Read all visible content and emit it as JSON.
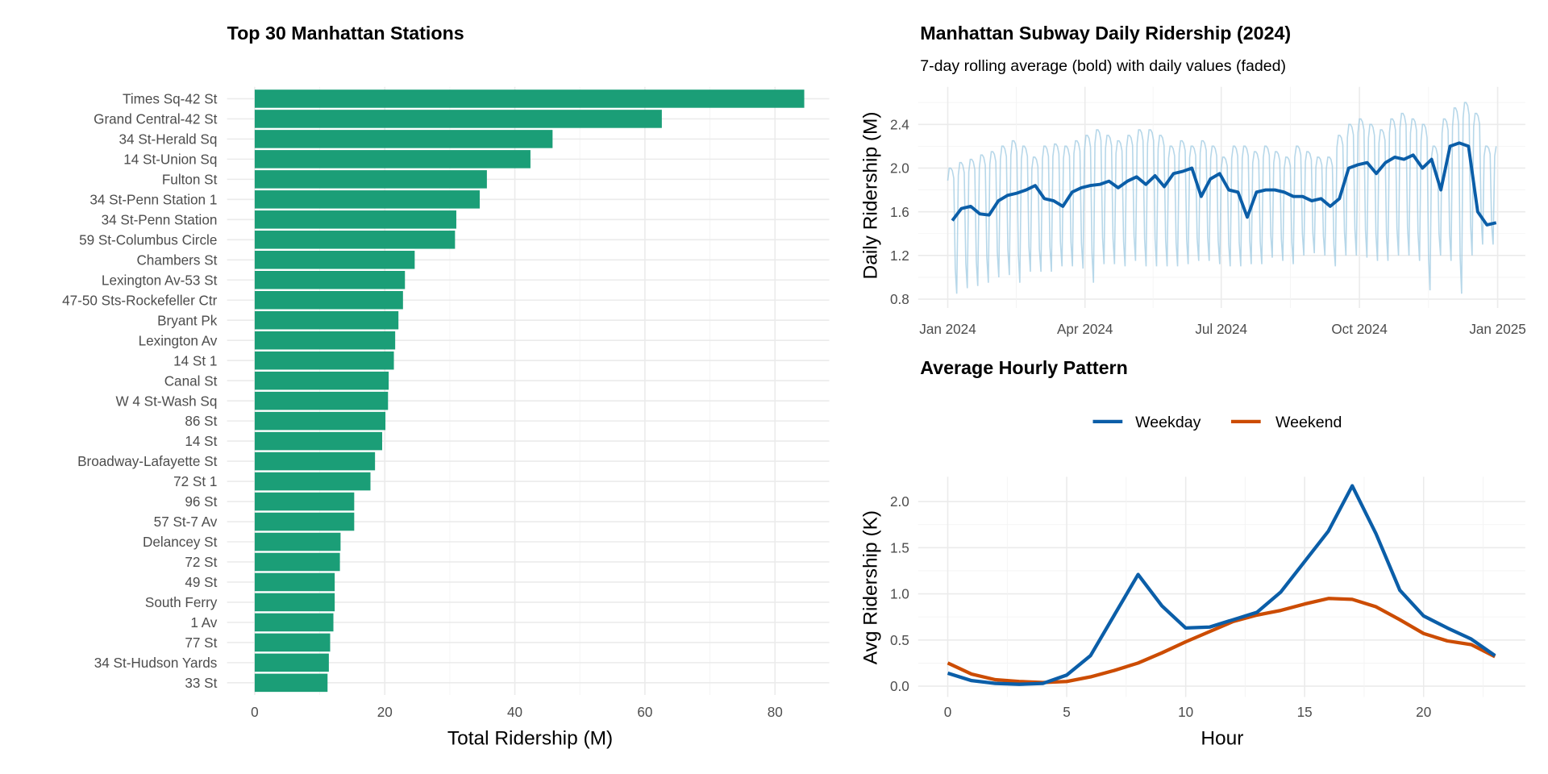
{
  "chart_data": [
    {
      "type": "bar",
      "orientation": "horizontal",
      "title": "Top 30 Manhattan Stations",
      "xlabel": "Total Ridership (M)",
      "ylabel": "",
      "xlim": [
        0,
        88
      ],
      "xticks": [
        "0",
        "20",
        "40",
        "60",
        "80"
      ],
      "grid": true,
      "color": "#1b9e77",
      "categories": [
        "Times Sq-42 St",
        "Grand Central-42 St",
        "34 St-Herald Sq",
        "14 St-Union Sq",
        "Fulton St",
        "34 St-Penn Station 1",
        "34 St-Penn Station",
        "59 St-Columbus Circle",
        "Chambers St",
        "Lexington Av-53 St",
        "47-50 Sts-Rockefeller Ctr",
        "Bryant Pk",
        "Lexington Av",
        "14 St 1",
        "Canal St",
        "W 4 St-Wash Sq",
        "86 St",
        "14 St",
        "Broadway-Lafayette St",
        "72 St 1",
        "96 St",
        "57 St-7 Av",
        "Delancey St",
        "72 St",
        "49 St",
        "South Ferry",
        "1 Av",
        "77 St",
        "34 St-Hudson Yards",
        "33 St"
      ],
      "values": [
        84.5,
        62.6,
        45.8,
        42.4,
        35.7,
        34.6,
        31.0,
        30.8,
        24.6,
        23.1,
        22.8,
        22.1,
        21.6,
        21.4,
        20.6,
        20.5,
        20.1,
        19.6,
        18.5,
        17.8,
        15.3,
        15.3,
        13.2,
        13.1,
        12.3,
        12.3,
        12.1,
        11.6,
        11.4,
        11.2
      ]
    },
    {
      "type": "line",
      "title": "Manhattan Subway Daily Ridership (2024)",
      "subtitle": "7-day rolling average (bold) with daily values (faded)",
      "xlabel": "",
      "ylabel": "Daily Ridership (M)",
      "xlim": [
        "2024-01-01",
        "2024-12-31"
      ],
      "ylim": [
        0.75,
        2.7
      ],
      "xticks": [
        "Jan 2024",
        "Apr 2024",
        "Jul 2024",
        "Oct 2024",
        "Jan 2025"
      ],
      "yticks": [
        "0.8",
        "1.2",
        "1.6",
        "2.0",
        "2.4"
      ],
      "grid": true,
      "color": "#0b5ea8",
      "rolling_avg_weekly": [
        1.52,
        1.63,
        1.65,
        1.58,
        1.57,
        1.7,
        1.75,
        1.77,
        1.8,
        1.84,
        1.72,
        1.7,
        1.65,
        1.78,
        1.82,
        1.84,
        1.85,
        1.88,
        1.82,
        1.88,
        1.92,
        1.85,
        1.93,
        1.83,
        1.95,
        1.97,
        2.0,
        1.74,
        1.9,
        1.95,
        1.8,
        1.78,
        1.55,
        1.78,
        1.8,
        1.8,
        1.78,
        1.74,
        1.74,
        1.7,
        1.72,
        1.65,
        1.72,
        2.0,
        2.03,
        2.05,
        1.95,
        2.05,
        2.1,
        2.08,
        2.12,
        2.0,
        2.08,
        1.8,
        2.2,
        2.23,
        2.2,
        1.6,
        1.48,
        1.5
      ],
      "daily_weekday_high_weekly": [
        2.0,
        2.05,
        2.08,
        2.12,
        2.15,
        2.2,
        2.25,
        2.2,
        2.1,
        2.2,
        2.22,
        2.2,
        2.25,
        2.3,
        2.35,
        2.3,
        2.25,
        2.3,
        2.35,
        2.35,
        2.3,
        2.2,
        2.25,
        2.2,
        2.25,
        2.2,
        2.1,
        2.2,
        2.2,
        2.15,
        2.2,
        2.15,
        2.1,
        2.2,
        2.15,
        2.1,
        2.1,
        2.3,
        2.4,
        2.45,
        2.4,
        2.35,
        2.45,
        2.5,
        2.45,
        2.4,
        2.2,
        2.45,
        2.55,
        2.6,
        2.5,
        2.2
      ],
      "daily_weekend_low_weekly": [
        0.85,
        0.9,
        0.92,
        0.95,
        1.0,
        1.02,
        0.95,
        1.05,
        1.05,
        1.05,
        1.1,
        1.1,
        1.08,
        0.95,
        1.12,
        1.12,
        1.1,
        1.15,
        1.1,
        1.1,
        1.1,
        1.1,
        1.12,
        1.15,
        1.15,
        1.12,
        1.1,
        1.1,
        1.12,
        1.12,
        1.18,
        1.15,
        1.12,
        1.2,
        1.22,
        1.2,
        1.1,
        1.2,
        1.2,
        1.18,
        1.15,
        1.15,
        1.2,
        1.2,
        1.15,
        0.88,
        1.2,
        1.15,
        0.85,
        1.2,
        1.3,
        1.3
      ]
    },
    {
      "type": "line",
      "title": "Average Hourly Pattern",
      "xlabel": "Hour",
      "ylabel": "Avg Ridership (K)",
      "xlim": [
        0,
        23
      ],
      "ylim": [
        0,
        2.2
      ],
      "xticks": [
        "0",
        "5",
        "10",
        "15",
        "20"
      ],
      "yticks": [
        "0.0",
        "0.5",
        "1.0",
        "1.5",
        "2.0"
      ],
      "grid": true,
      "legend": "top",
      "x": [
        0,
        1,
        2,
        3,
        4,
        5,
        6,
        7,
        8,
        9,
        10,
        11,
        12,
        13,
        14,
        15,
        16,
        17,
        18,
        19,
        20,
        21,
        22,
        23
      ],
      "series": [
        {
          "name": "Weekday",
          "color": "#0b5ea8",
          "values": [
            0.14,
            0.06,
            0.03,
            0.02,
            0.03,
            0.12,
            0.33,
            0.77,
            1.21,
            0.87,
            0.63,
            0.64,
            0.72,
            0.8,
            1.02,
            1.35,
            1.68,
            2.17,
            1.65,
            1.04,
            0.76,
            0.63,
            0.51,
            0.33
          ]
        },
        {
          "name": "Weekend",
          "color": "#cc4c02",
          "values": [
            0.25,
            0.13,
            0.07,
            0.05,
            0.04,
            0.05,
            0.1,
            0.17,
            0.25,
            0.36,
            0.48,
            0.59,
            0.7,
            0.77,
            0.82,
            0.89,
            0.95,
            0.94,
            0.86,
            0.72,
            0.57,
            0.49,
            0.45,
            0.32
          ]
        }
      ]
    }
  ]
}
